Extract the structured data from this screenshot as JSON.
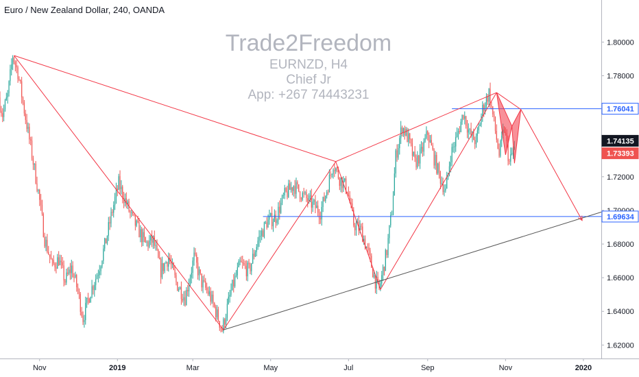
{
  "header": {
    "title": "Euro / New Zealand Dollar, 240, OANDA"
  },
  "watermark": {
    "main": "Trade2Freedom",
    "line1": "EURNZD, H4",
    "line2": "Chief Jr",
    "line3": "App: +267 74443231"
  },
  "colors": {
    "bull": "#26a69a",
    "bear": "#ef5350",
    "pattern": "#f23645",
    "hline": "#2962ff",
    "trend": "#555555",
    "bg": "#ffffff"
  },
  "chart_data": {
    "type": "candlestick",
    "symbol": "EURNZD",
    "timeframe": "240",
    "y_axis": {
      "ylim": [
        1.612,
        1.825
      ],
      "ticks": [
        "1.62000",
        "1.64000",
        "1.66000",
        "1.68000",
        "1.70000",
        "1.72000",
        "1.74000",
        "1.76000",
        "1.78000",
        "1.80000"
      ]
    },
    "x_axis": {
      "xlim": [
        "2018-10-01",
        "2020-01-15"
      ],
      "ticks": [
        {
          "label": "Nov",
          "date": "2018-11-01",
          "bold": false
        },
        {
          "label": "2019",
          "date": "2019-01-01",
          "bold": true
        },
        {
          "label": "Mar",
          "date": "2019-03-01",
          "bold": false
        },
        {
          "label": "May",
          "date": "2019-05-01",
          "bold": false
        },
        {
          "label": "Jul",
          "date": "2019-07-01",
          "bold": false
        },
        {
          "label": "Sep",
          "date": "2019-09-01",
          "bold": false
        },
        {
          "label": "Nov",
          "date": "2019-11-01",
          "bold": false
        },
        {
          "label": "2020",
          "date": "2020-01-01",
          "bold": true
        }
      ]
    },
    "price_path": [
      [
        "2018-10-01",
        1.767
      ],
      [
        "2018-10-04",
        1.757
      ],
      [
        "2018-10-08",
        1.768
      ],
      [
        "2018-10-12",
        1.792
      ],
      [
        "2018-10-16",
        1.782
      ],
      [
        "2018-10-20",
        1.764
      ],
      [
        "2018-10-25",
        1.742
      ],
      [
        "2018-11-01",
        1.711
      ],
      [
        "2018-11-06",
        1.683
      ],
      [
        "2018-11-12",
        1.667
      ],
      [
        "2018-11-17",
        1.671
      ],
      [
        "2018-11-22",
        1.658
      ],
      [
        "2018-11-27",
        1.666
      ],
      [
        "2018-12-02",
        1.652
      ],
      [
        "2018-12-06",
        1.636
      ],
      [
        "2018-12-12",
        1.652
      ],
      [
        "2018-12-18",
        1.664
      ],
      [
        "2018-12-24",
        1.682
      ],
      [
        "2018-12-29",
        1.7
      ],
      [
        "2019-01-03",
        1.716
      ],
      [
        "2019-01-08",
        1.706
      ],
      [
        "2019-01-13",
        1.696
      ],
      [
        "2019-01-18",
        1.689
      ],
      [
        "2019-01-24",
        1.68
      ],
      [
        "2019-01-30",
        1.682
      ],
      [
        "2019-02-05",
        1.664
      ],
      [
        "2019-02-11",
        1.672
      ],
      [
        "2019-02-17",
        1.657
      ],
      [
        "2019-02-24",
        1.648
      ],
      [
        "2019-03-03",
        1.672
      ],
      [
        "2019-03-09",
        1.657
      ],
      [
        "2019-03-15",
        1.65
      ],
      [
        "2019-03-20",
        1.64
      ],
      [
        "2019-03-25",
        1.629
      ],
      [
        "2019-04-01",
        1.652
      ],
      [
        "2019-04-08",
        1.668
      ],
      [
        "2019-04-15",
        1.664
      ],
      [
        "2019-04-22",
        1.682
      ],
      [
        "2019-04-29",
        1.693
      ],
      [
        "2019-05-06",
        1.696
      ],
      [
        "2019-05-13",
        1.709
      ],
      [
        "2019-05-20",
        1.715
      ],
      [
        "2019-05-27",
        1.709
      ],
      [
        "2019-06-03",
        1.704
      ],
      [
        "2019-06-10",
        1.699
      ],
      [
        "2019-06-15",
        1.712
      ],
      [
        "2019-06-20",
        1.728
      ],
      [
        "2019-06-25",
        1.719
      ],
      [
        "2019-07-01",
        1.713
      ],
      [
        "2019-07-06",
        1.692
      ],
      [
        "2019-07-12",
        1.688
      ],
      [
        "2019-07-18",
        1.673
      ],
      [
        "2019-07-23",
        1.658
      ],
      [
        "2019-07-26",
        1.653
      ],
      [
        "2019-08-01",
        1.676
      ],
      [
        "2019-08-05",
        1.7
      ],
      [
        "2019-08-08",
        1.732
      ],
      [
        "2019-08-13",
        1.75
      ],
      [
        "2019-08-18",
        1.742
      ],
      [
        "2019-08-23",
        1.728
      ],
      [
        "2019-08-28",
        1.734
      ],
      [
        "2019-09-02",
        1.746
      ],
      [
        "2019-09-07",
        1.731
      ],
      [
        "2019-09-12",
        1.719
      ],
      [
        "2019-09-16",
        1.711
      ],
      [
        "2019-09-20",
        1.733
      ],
      [
        "2019-09-25",
        1.744
      ],
      [
        "2019-09-30",
        1.758
      ],
      [
        "2019-10-05",
        1.745
      ],
      [
        "2019-10-10",
        1.741
      ],
      [
        "2019-10-15",
        1.76
      ],
      [
        "2019-10-20",
        1.77
      ],
      [
        "2019-10-24",
        1.752
      ],
      [
        "2019-10-28",
        1.733
      ],
      [
        "2019-11-01",
        1.749
      ],
      [
        "2019-11-05",
        1.728
      ],
      [
        "2019-11-08",
        1.736
      ]
    ],
    "last_price": 1.73393,
    "prev_close": 1.74135,
    "horizontal_lines": [
      {
        "price": 1.76041,
        "label": "1.76041",
        "from": "2019-09-20"
      },
      {
        "price": 1.69634,
        "label": "1.69634",
        "from": "2019-04-25"
      }
    ],
    "price_tags": [
      {
        "price": 1.76041,
        "label": "1.76041",
        "style": "outline-blue"
      },
      {
        "price": 1.74135,
        "label": "1.74135",
        "style": "dark"
      },
      {
        "price": 1.73393,
        "label": "1.73393",
        "style": "red"
      },
      {
        "price": 1.69634,
        "label": "1.69634",
        "style": "outline-blue"
      }
    ],
    "zigzag": [
      [
        "2018-10-12",
        1.792
      ],
      [
        "2019-06-21",
        1.729
      ],
      [
        "2019-10-25",
        1.77
      ]
    ],
    "zigzag2": [
      [
        "2018-10-12",
        1.792
      ],
      [
        "2019-03-25",
        1.629
      ],
      [
        "2019-06-21",
        1.729
      ],
      [
        "2019-07-26",
        1.653
      ],
      [
        "2019-10-25",
        1.77
      ]
    ],
    "projection": [
      [
        "2019-11-13",
        1.76
      ],
      [
        "2019-12-31",
        1.694
      ]
    ],
    "trendline": [
      [
        "2019-03-25",
        1.629
      ],
      [
        "2020-01-15",
        1.699
      ]
    ],
    "harmonic": {
      "points": [
        [
          "2019-10-25",
          1.77
        ],
        [
          "2019-11-01",
          1.733
        ],
        [
          "2019-11-06",
          1.75
        ],
        [
          "2019-11-08",
          1.728
        ],
        [
          "2019-11-13",
          1.76
        ]
      ]
    }
  }
}
